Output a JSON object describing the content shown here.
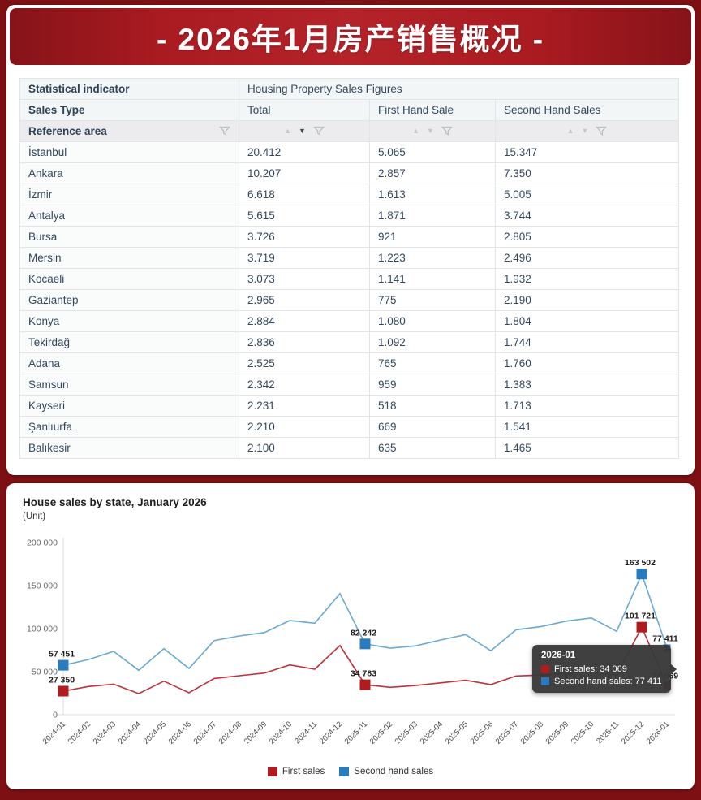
{
  "banner": {
    "title": "- 2026年1月房产销售概况 -"
  },
  "table": {
    "row1": {
      "label": "Statistical indicator",
      "value": "Housing Property Sales Figures"
    },
    "row2": {
      "label": "Sales Type",
      "cols": [
        "Total",
        "First Hand Sale",
        "Second Hand Sales"
      ]
    },
    "row3": {
      "label": "Reference area",
      "active_sort": "total-desc"
    },
    "rows": [
      {
        "area": "İstanbul",
        "total": "20.412",
        "first": "5.065",
        "second": "15.347"
      },
      {
        "area": "Ankara",
        "total": "10.207",
        "first": "2.857",
        "second": "7.350"
      },
      {
        "area": "İzmir",
        "total": "6.618",
        "first": "1.613",
        "second": "5.005"
      },
      {
        "area": "Antalya",
        "total": "5.615",
        "first": "1.871",
        "second": "3.744"
      },
      {
        "area": "Bursa",
        "total": "3.726",
        "first": "921",
        "second": "2.805"
      },
      {
        "area": "Mersin",
        "total": "3.719",
        "first": "1.223",
        "second": "2.496"
      },
      {
        "area": "Kocaeli",
        "total": "3.073",
        "first": "1.141",
        "second": "1.932"
      },
      {
        "area": "Gaziantep",
        "total": "2.965",
        "first": "775",
        "second": "2.190"
      },
      {
        "area": "Konya",
        "total": "2.884",
        "first": "1.080",
        "second": "1.804"
      },
      {
        "area": "Tekirdağ",
        "total": "2.836",
        "first": "1.092",
        "second": "1.744"
      },
      {
        "area": "Adana",
        "total": "2.525",
        "first": "765",
        "second": "1.760"
      },
      {
        "area": "Samsun",
        "total": "2.342",
        "first": "959",
        "second": "1.383"
      },
      {
        "area": "Kayseri",
        "total": "2.231",
        "first": "518",
        "second": "1.713"
      },
      {
        "area": "Şanlıurfa",
        "total": "2.210",
        "first": "669",
        "second": "1.541"
      },
      {
        "area": "Balıkesir",
        "total": "2.100",
        "first": "635",
        "second": "1.465"
      }
    ]
  },
  "chart": {
    "title": "House sales by state, January 2026",
    "subtitle": "(Unit)",
    "tooltip": {
      "title": "2026-01",
      "rows": [
        {
          "text": "First sales: 34 069",
          "color": "#b01b20"
        },
        {
          "text": "Second hand sales: 77 411",
          "color": "#2a7bbe"
        }
      ]
    },
    "legend": [
      {
        "label": "First sales",
        "color": "#b01b20"
      },
      {
        "label": "Second hand sales",
        "color": "#2a7bbe"
      }
    ]
  },
  "chart_data": {
    "type": "line",
    "title": "House sales by state, January 2026",
    "ylabel": "(Unit)",
    "ylim": [
      0,
      200000
    ],
    "yticks": [
      {
        "label": "0",
        "value": 0
      },
      {
        "label": "50 000",
        "value": 50000
      },
      {
        "label": "100 000",
        "value": 100000
      },
      {
        "label": "150 000",
        "value": 150000
      },
      {
        "label": "200 000",
        "value": 200000
      }
    ],
    "x": [
      "2024-01",
      "2024-02",
      "2024-03",
      "2024-04",
      "2024-05",
      "2024-06",
      "2024-07",
      "2024-08",
      "2024-09",
      "2024-10",
      "2024-11",
      "2024-12",
      "2025-01",
      "2025-02",
      "2025-03",
      "2025-04",
      "2025-05",
      "2025-06",
      "2025-07",
      "2025-08",
      "2025-09",
      "2025-10",
      "2025-11",
      "2025-12",
      "2026-01"
    ],
    "series": [
      {
        "name": "First sales",
        "line_color": "#bd3338",
        "marker_color": "#b01b20",
        "values": [
          27350,
          32700,
          35500,
          24500,
          39000,
          25500,
          42100,
          45300,
          48400,
          57800,
          52800,
          80400,
          34783,
          31800,
          33900,
          37000,
          40000,
          35000,
          45000,
          46000,
          48000,
          50000,
          46000,
          101721,
          34069
        ],
        "point_labels": {
          "0": "27 350",
          "12": "34 783",
          "23": "101 721",
          "24": "34 069"
        }
      },
      {
        "name": "Second hand sales",
        "line_color": "#6aaad2",
        "marker_color": "#2a7bbe",
        "values": [
          57451,
          64100,
          73600,
          51600,
          76700,
          53800,
          86100,
          91500,
          95500,
          109400,
          106300,
          140800,
          82242,
          77300,
          79900,
          86800,
          93100,
          74200,
          98700,
          102500,
          108800,
          112500,
          96900,
          163502,
          77411
        ],
        "point_labels": {
          "0": "57 451",
          "12": "82 242",
          "23": "163 502",
          "24": "77 411"
        }
      }
    ],
    "marker_sizes": {
      "0": 13,
      "12": 13,
      "23": 13,
      "24": 9
    },
    "legend_position": "bottom",
    "grid": false
  }
}
